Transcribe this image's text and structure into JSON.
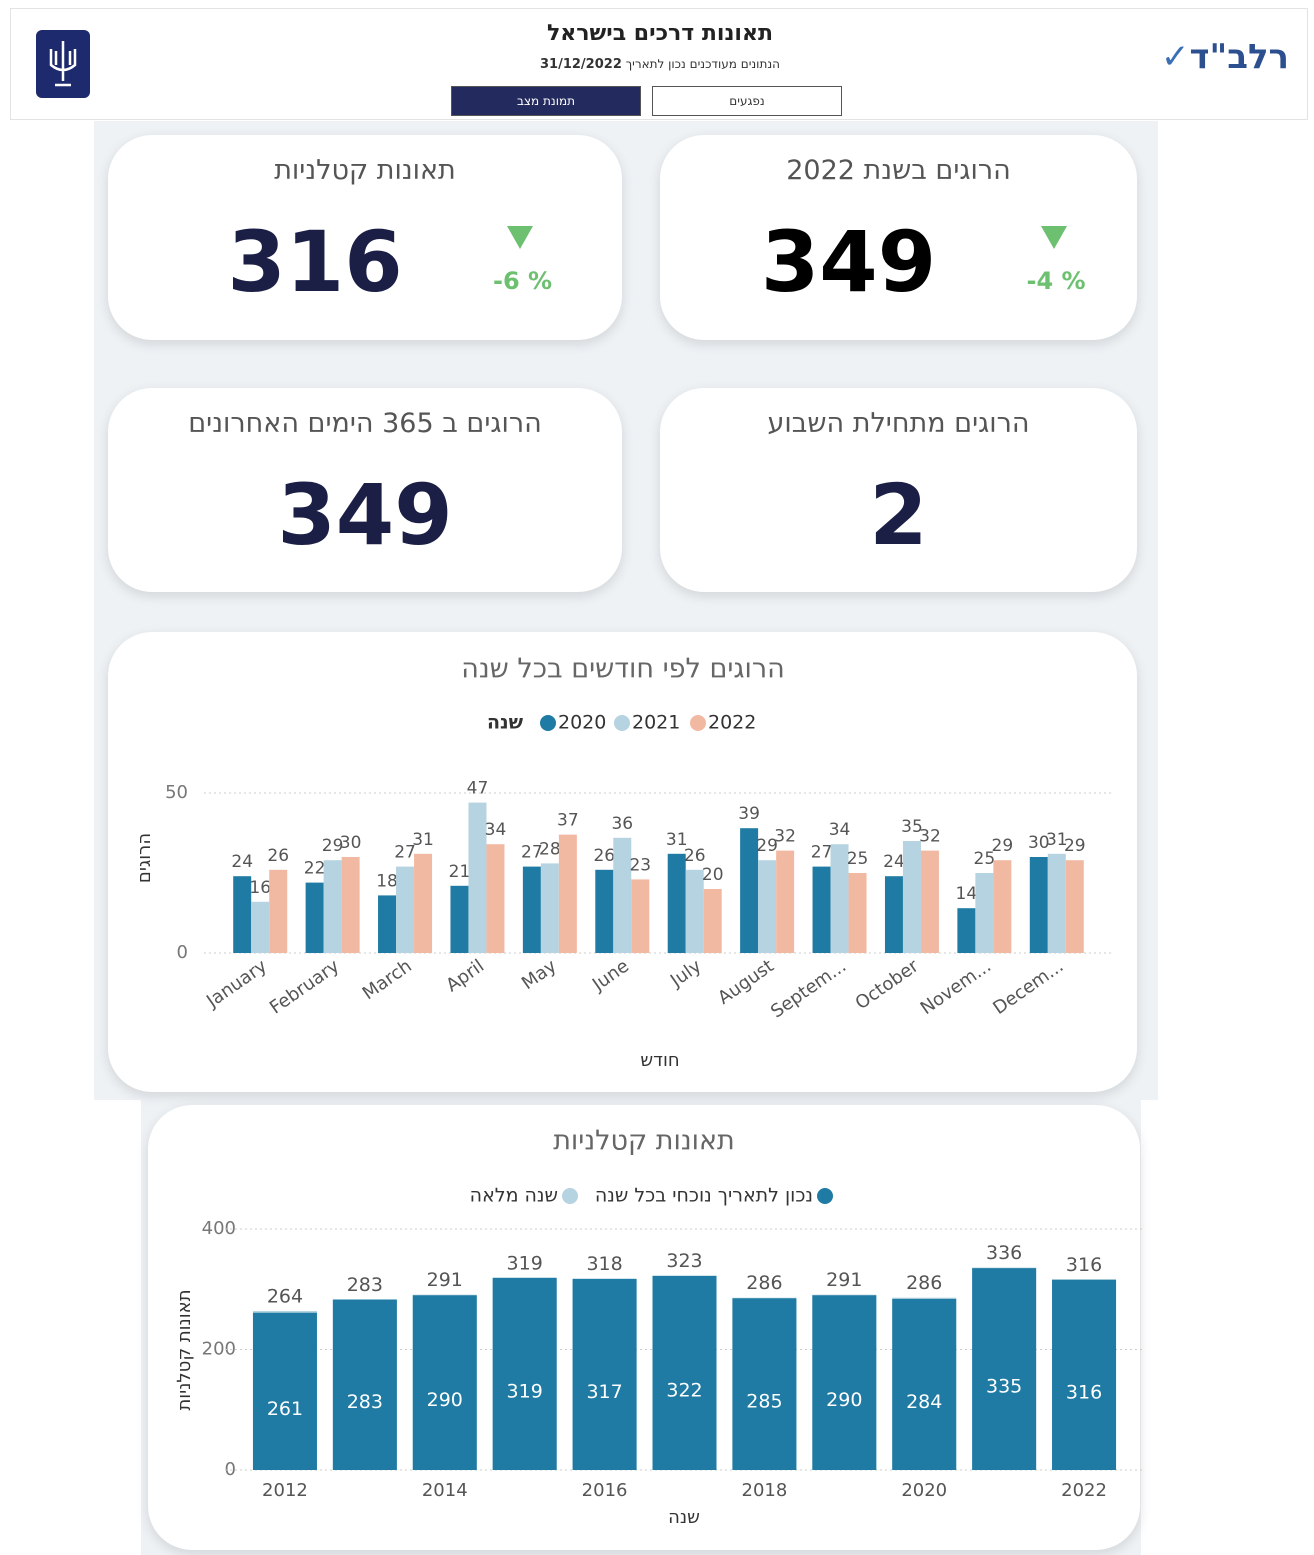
{
  "header": {
    "title": "תאונות דרכים בישראל",
    "subtitle": "הנתונים מעודכנים נכון לתאריך",
    "date": "31/12/2022",
    "tabs": [
      "תמונת מצב",
      "נפגעים"
    ],
    "logo": "רלב\"ד"
  },
  "kpis": [
    {
      "title": "הרוגים בשנת 2022",
      "value": 349,
      "change": {
        "value": -4,
        "label": "-4 %"
      }
    },
    {
      "title": "תאונות קטלניות",
      "value": 316,
      "change": {
        "value": -6,
        "label": "-6 %"
      }
    },
    {
      "title": "הרוגים מתחילת השבוע",
      "value": 2
    },
    {
      "title": "הרוגים ב 365 הימים האחרונים",
      "value": 349
    }
  ],
  "chart_data": [
    {
      "type": "bar",
      "title": "הרוגים לפי חודשים בכל שנה",
      "legend_title": "שנה",
      "x_label": "חודש",
      "y_label": "הרוגים",
      "categories": [
        "January",
        "February",
        "March",
        "April",
        "May",
        "June",
        "July",
        "August",
        "Septem...",
        "October",
        "Novem...",
        "Decem..."
      ],
      "series": [
        {
          "name": "2020",
          "color": "#1f7ba3",
          "values": [
            24,
            22,
            18,
            21,
            27,
            26,
            31,
            39,
            27,
            24,
            14,
            30
          ]
        },
        {
          "name": "2021",
          "color": "#b5d3e0",
          "values": [
            16,
            29,
            27,
            47,
            28,
            36,
            26,
            29,
            34,
            35,
            25,
            31
          ]
        },
        {
          "name": "2022",
          "color": "#f2b9a2",
          "values": [
            26,
            30,
            31,
            34,
            37,
            23,
            20,
            32,
            25,
            32,
            29,
            29
          ]
        }
      ],
      "ylim": [
        0,
        55
      ],
      "yticks": [
        0,
        50
      ],
      "grid": true
    },
    {
      "type": "bar",
      "overlap": true,
      "title": "תאונות קטלניות",
      "x_label": "שנה",
      "y_label": "תאונות קטלניות",
      "categories": [
        "2012",
        null,
        "2014",
        null,
        "2016",
        null,
        "2018",
        null,
        "2020",
        null,
        "2022"
      ],
      "series": [
        {
          "name": "שנה מלאה",
          "color": "#b5d3e0",
          "values": [
            264,
            283,
            291,
            319,
            318,
            323,
            286,
            291,
            286,
            336,
            316
          ]
        },
        {
          "name": "נכון לתאריך נוכחי בכל שנה",
          "color": "#1f7ba3",
          "values": [
            261,
            283,
            290,
            319,
            317,
            322,
            285,
            290,
            284,
            335,
            316
          ]
        }
      ],
      "ylim": [
        0,
        400
      ],
      "yticks": [
        0,
        200,
        400
      ],
      "grid": true
    }
  ]
}
